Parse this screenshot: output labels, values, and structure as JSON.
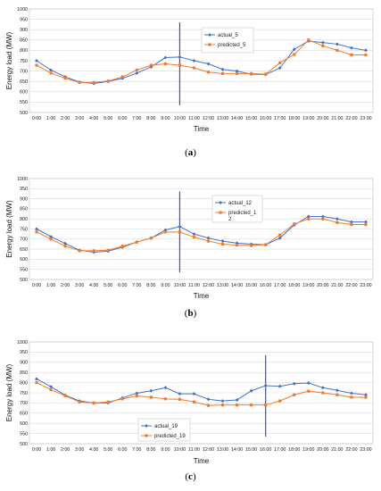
{
  "figure": {
    "colors": {
      "actual": "#4472C4",
      "predicted": "#ED7D31",
      "marker_line": "#2E4FD6",
      "grid": "#d9d9d9"
    }
  },
  "chart_data": [
    {
      "type": "line",
      "caption": {
        "open": "(",
        "letter": "a",
        "close": ")"
      },
      "xlabel": "Time",
      "ylabel": "Energy load (MW)",
      "categories": [
        "0:00",
        "1:00",
        "2:00",
        "3:00",
        "4:00",
        "5:00",
        "6:00",
        "7:00",
        "8:00",
        "9:00",
        "10:00",
        "11:00",
        "12:00",
        "13:00",
        "14:00",
        "15:00",
        "16:00",
        "17:00",
        "18:00",
        "19:00",
        "20:00",
        "21:00",
        "22:00",
        "23:00"
      ],
      "ylim": [
        500,
        1000
      ],
      "yticks": [
        500,
        550,
        600,
        650,
        700,
        750,
        800,
        850,
        900,
        950,
        1000
      ],
      "grid": true,
      "legend_position": "top-right",
      "vline_at": "10:00",
      "series": [
        {
          "name": "actual_5",
          "values": [
            750,
            705,
            672,
            647,
            640,
            650,
            665,
            690,
            720,
            765,
            768,
            750,
            735,
            708,
            700,
            685,
            683,
            715,
            805,
            845,
            838,
            830,
            812,
            800
          ]
        },
        {
          "name": "predicted_5",
          "values": [
            728,
            690,
            665,
            645,
            645,
            652,
            672,
            705,
            728,
            735,
            728,
            715,
            695,
            688,
            688,
            688,
            685,
            740,
            780,
            850,
            822,
            800,
            778,
            778
          ]
        }
      ]
    },
    {
      "type": "line",
      "caption": {
        "open": "(",
        "letter": "b",
        "close": ")"
      },
      "xlabel": "Time",
      "ylabel": "Energy load (MW)",
      "categories": [
        "0:00",
        "1:00",
        "2:00",
        "3:00",
        "4:00",
        "5:00",
        "6:00",
        "7:00",
        "8:00",
        "9:00",
        "10:00",
        "11:00",
        "12:00",
        "13:00",
        "14:00",
        "15:00",
        "16:00",
        "17:00",
        "18:00",
        "19:00",
        "20:00",
        "21:00",
        "22:00",
        "23:00"
      ],
      "ylim": [
        500,
        1000
      ],
      "yticks": [
        500,
        550,
        600,
        650,
        700,
        750,
        800,
        850,
        900,
        950,
        1000
      ],
      "grid": true,
      "legend_position": "top-right",
      "vline_at": "10:00",
      "series": [
        {
          "name": "actual_12",
          "values": [
            750,
            712,
            678,
            645,
            635,
            640,
            660,
            685,
            705,
            745,
            762,
            725,
            705,
            690,
            680,
            675,
            672,
            705,
            770,
            812,
            812,
            800,
            785,
            785
          ]
        },
        {
          "name": "predicted_12",
          "legend_label": [
            "predicted_1",
            "2"
          ],
          "values": [
            735,
            700,
            665,
            642,
            642,
            645,
            665,
            685,
            705,
            735,
            735,
            710,
            690,
            675,
            670,
            668,
            672,
            720,
            775,
            800,
            800,
            782,
            772,
            772
          ]
        }
      ]
    },
    {
      "type": "line",
      "caption": {
        "open": "(",
        "letter": "c",
        "close": ")"
      },
      "xlabel": "Time",
      "ylabel": "Energy load (MW)",
      "categories": [
        "0:00",
        "1:00",
        "2:00",
        "3:00",
        "4:00",
        "5:00",
        "6:00",
        "7:00",
        "8:00",
        "9:00",
        "10:00",
        "11:00",
        "12:00",
        "13:00",
        "14:00",
        "15:00",
        "16:00",
        "17:00",
        "18:00",
        "19:00",
        "20:00",
        "21:00",
        "22:00",
        "23:00"
      ],
      "ylim": [
        500,
        1000
      ],
      "yticks": [
        500,
        550,
        600,
        650,
        700,
        750,
        800,
        850,
        900,
        950,
        1000
      ],
      "grid": true,
      "legend_position": "bottom-left",
      "vline_at": "16:00",
      "series": [
        {
          "name": "actual_19",
          "values": [
            818,
            780,
            738,
            710,
            700,
            700,
            725,
            748,
            760,
            775,
            745,
            745,
            718,
            710,
            715,
            760,
            785,
            782,
            795,
            798,
            775,
            762,
            748,
            740
          ]
        },
        {
          "name": "predicted_19",
          "values": [
            800,
            765,
            735,
            705,
            700,
            705,
            720,
            735,
            728,
            720,
            718,
            705,
            688,
            690,
            690,
            690,
            690,
            710,
            740,
            758,
            750,
            740,
            728,
            728
          ]
        }
      ]
    }
  ]
}
